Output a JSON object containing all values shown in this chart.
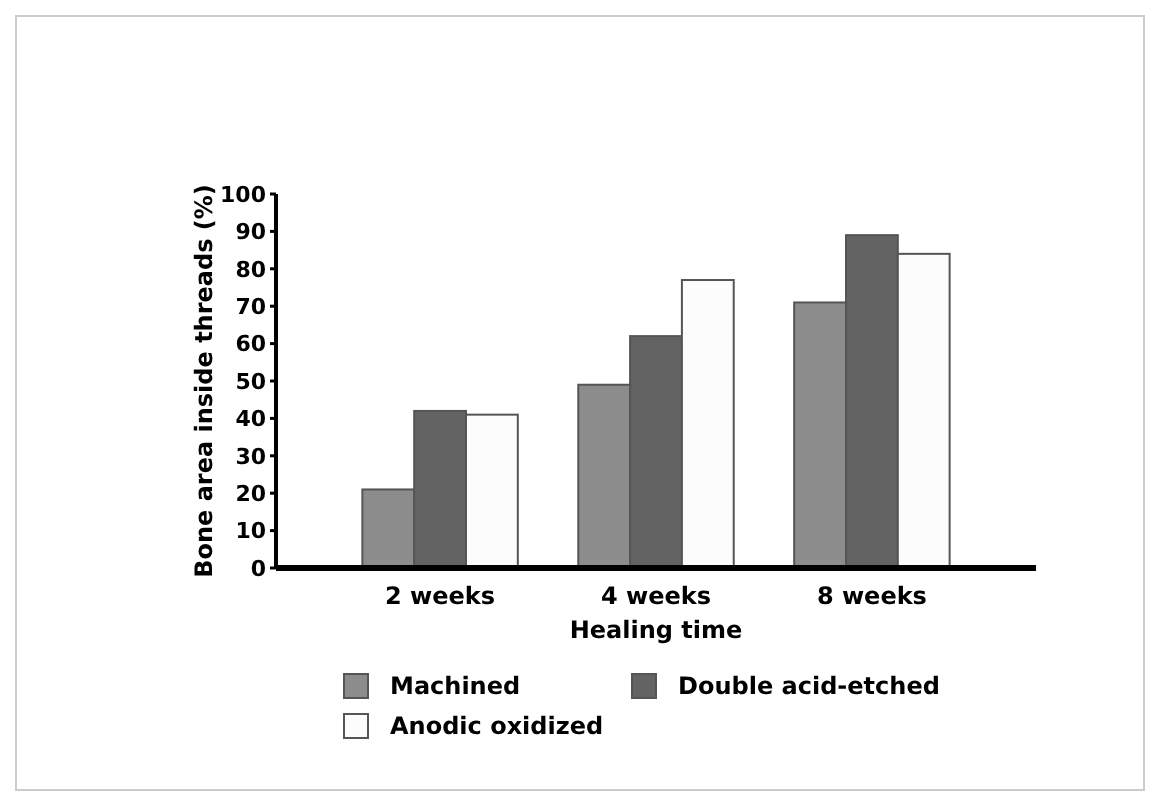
{
  "chart_data": {
    "type": "bar",
    "xlabel": "Healing time",
    "ylabel": "Bone area inside threads (%)",
    "categories": [
      "2 weeks",
      "4 weeks",
      "8 weeks"
    ],
    "series": [
      {
        "name": "Machined",
        "color": "#8c8c8c",
        "values": [
          21,
          49,
          71
        ]
      },
      {
        "name": "Double acid-etched",
        "color": "#636363",
        "values": [
          42,
          62,
          89
        ]
      },
      {
        "name": "Anodic oxidized",
        "color": "#fcfcfc",
        "values": [
          41,
          77,
          84
        ]
      }
    ],
    "ylim": [
      0,
      100
    ],
    "yticks": [
      0,
      10,
      20,
      30,
      40,
      50,
      60,
      70,
      80,
      90,
      100
    ],
    "grid": false,
    "legend": "bottom"
  }
}
